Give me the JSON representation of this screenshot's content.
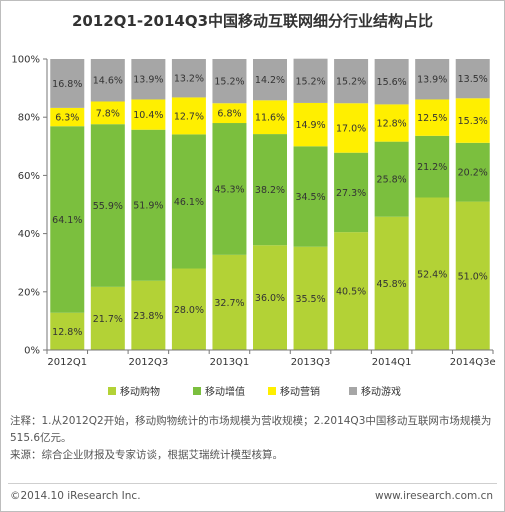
{
  "title": "2012Q1-2014Q3中国移动互联网细分行业结构占比",
  "chart_data": {
    "type": "bar",
    "stacked": true,
    "percent": true,
    "categories": [
      "2012Q1",
      "2012Q2",
      "2012Q3",
      "2012Q4",
      "2013Q1",
      "2013Q2",
      "2013Q3",
      "2013Q4",
      "2014Q1",
      "2014Q2",
      "2014Q3e"
    ],
    "tick_labels": [
      "2012Q1",
      "",
      "2012Q3",
      "",
      "2013Q1",
      "",
      "2013Q3",
      "",
      "2014Q1",
      "",
      "2014Q3e"
    ],
    "series": [
      {
        "name": "移动购物",
        "color": "#b3d236",
        "values": [
          12.8,
          21.7,
          23.8,
          28.0,
          32.7,
          36.0,
          35.5,
          40.5,
          45.8,
          52.4,
          51.0
        ]
      },
      {
        "name": "移动增值",
        "color": "#7bbf3e",
        "values": [
          64.1,
          55.9,
          51.9,
          46.1,
          45.3,
          38.2,
          34.5,
          27.3,
          25.8,
          21.2,
          20.2
        ]
      },
      {
        "name": "移动营销",
        "color": "#ffef00",
        "values": [
          6.3,
          7.8,
          10.4,
          12.7,
          6.8,
          11.6,
          14.9,
          17.0,
          12.8,
          12.5,
          15.3
        ]
      },
      {
        "name": "移动游戏",
        "color": "#a6a6a6",
        "values": [
          16.8,
          14.6,
          13.9,
          13.2,
          15.2,
          14.2,
          15.2,
          15.2,
          15.6,
          13.9,
          13.5
        ]
      }
    ],
    "ylim": [
      0,
      100
    ],
    "yticks": [
      "0%",
      "20%",
      "40%",
      "60%",
      "80%",
      "100%"
    ],
    "grid": false,
    "legend": "bottom"
  },
  "notes": {
    "line1": "注释：1.从2012Q2开始，移动购物统计的市场规模为营收规模；2.2014Q3中国移动互联网市场规模为515.6亿元。",
    "line2": "来源：综合企业财报及专家访谈，根据艾瑞统计模型核算。"
  },
  "footer": {
    "copyright": "©2014.10 iResearch Inc.",
    "website": "www.iresearch.com.cn"
  }
}
